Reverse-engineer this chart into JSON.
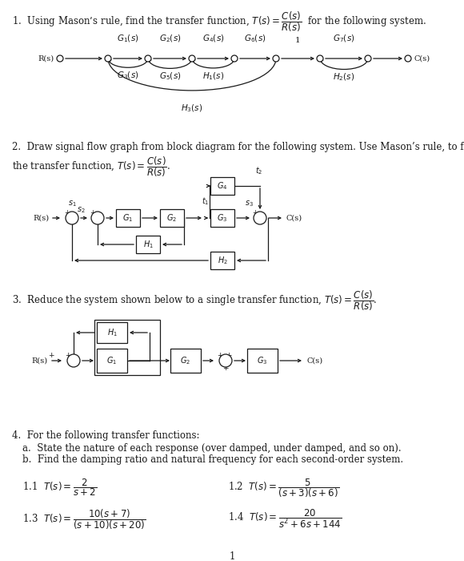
{
  "background": "#ffffff",
  "text_color": "#1a1a1a",
  "page_number": "1",
  "q1_line1": "1.  Using Mason’s rule, find the transfer function, $T(s) = \\dfrac{C(s)}{R(s)}$  for the following system.",
  "q2_line1": "2.  Draw signal flow graph from block diagram for the following system. Use Mason’s rule, to find",
  "q2_line2": "the transfer function, $T(s) = \\dfrac{C(s)}{R(s)}$.",
  "q3_line1": "3.  Reduce the system shown below to a single transfer function, $T(s) = \\dfrac{C(s)}{R(s)}$.",
  "q4_line1": "4.  For the following transfer functions:",
  "q4a": "a.  State the nature of each response (over damped, under damped, and so on).",
  "q4b": "b.  Find the damping ratio and natural frequency for each second-order system.",
  "tf11": "1.1  $T(s) = \\dfrac{2}{s+2}$",
  "tf12": "1.2  $T(s) = \\dfrac{5}{(s+3)(s+6)}$",
  "tf13": "1.3  $T(s) = \\dfrac{10(s+7)}{(s+10)(s+20)}$",
  "tf14": "1.4  $T(s) = \\dfrac{20}{s^2+6s+144}$"
}
